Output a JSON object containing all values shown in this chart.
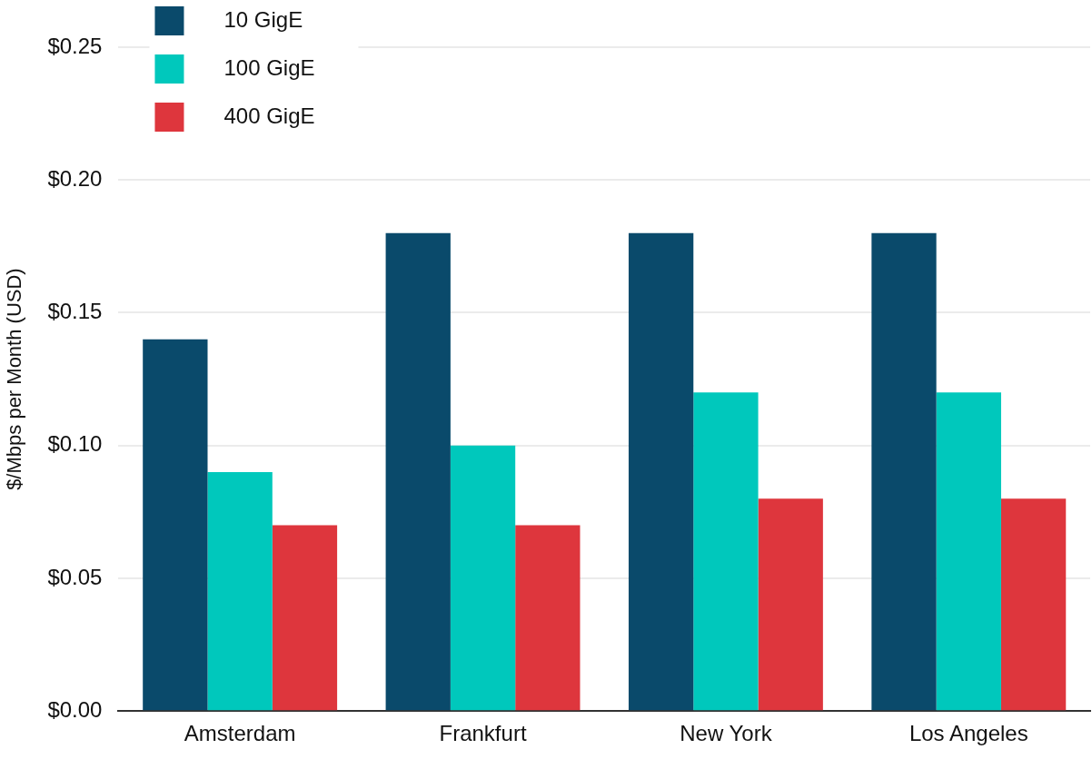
{
  "chart_data": {
    "type": "bar",
    "ylabel": "$/Mbps per Month (USD)",
    "categories": [
      "Amsterdam",
      "Frankfurt",
      "New York",
      "Los Angeles"
    ],
    "series": [
      {
        "name": "10 GigE",
        "color": "#0a4a6b",
        "values": [
          0.14,
          0.18,
          0.18,
          0.18
        ]
      },
      {
        "name": "100 GigE",
        "color": "#00c8bc",
        "values": [
          0.09,
          0.1,
          0.12,
          0.12
        ]
      },
      {
        "name": "400 GigE",
        "color": "#de363d",
        "values": [
          0.07,
          0.07,
          0.08,
          0.08
        ]
      }
    ],
    "ylim": [
      0,
      0.25
    ],
    "yticks": [
      {
        "value": 0,
        "label": "$0.00"
      },
      {
        "value": 0.05,
        "label": "$0.05"
      },
      {
        "value": 0.1,
        "label": "$0.10"
      },
      {
        "value": 0.15,
        "label": "$0.15"
      },
      {
        "value": 0.2,
        "label": "$0.20"
      },
      {
        "value": 0.25,
        "label": "$0.25"
      }
    ],
    "grid": "y",
    "legend": "top left"
  }
}
